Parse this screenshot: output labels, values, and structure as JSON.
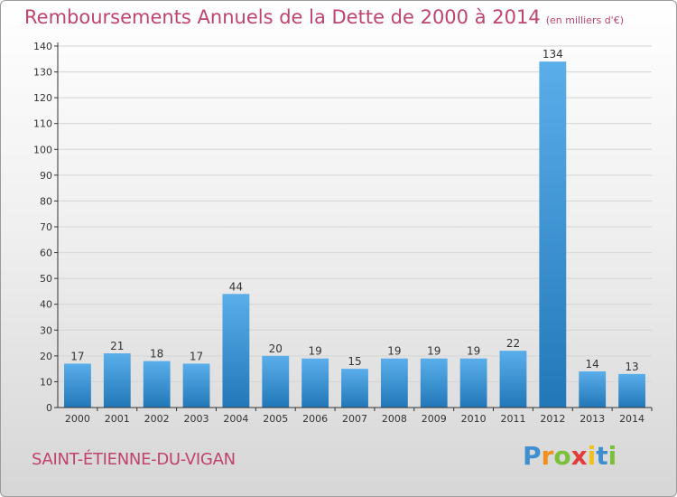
{
  "header": {
    "title": "Remboursements Annuels de la Dette de 2000 à 2014",
    "unit": "(en milliers d'€)"
  },
  "footer": {
    "commune": "SAINT-ÉTIENNE-DU-VIGAN",
    "logo": [
      "P",
      "r",
      "o",
      "x",
      "i",
      "t",
      "i"
    ],
    "logo_colors": [
      "#3f8fd0",
      "#f28f1c",
      "#7cbf3a",
      "#e23b3b",
      "#f2c21c",
      "#3f8fd0",
      "#7cbf3a"
    ]
  },
  "colors": {
    "title": "#c0436f",
    "bar_light": "#5aaeea",
    "bar_dark": "#2277b8",
    "axis": "#333333",
    "grid": "#d4d4d4"
  },
  "chart_data": {
    "type": "bar",
    "categories": [
      "2000",
      "2001",
      "2002",
      "2003",
      "2004",
      "2005",
      "2006",
      "2007",
      "2008",
      "2009",
      "2010",
      "2011",
      "2012",
      "2013",
      "2014"
    ],
    "values": [
      17,
      21,
      18,
      17,
      44,
      20,
      19,
      15,
      19,
      19,
      19,
      22,
      134,
      14,
      13
    ],
    "title": "Remboursements Annuels de la Dette de 2000 à 2014",
    "ylim": [
      0,
      140
    ],
    "yticks": [
      0,
      10,
      20,
      30,
      40,
      50,
      60,
      70,
      80,
      90,
      100,
      110,
      120,
      130,
      140
    ],
    "grid": true,
    "data_labels": true
  }
}
